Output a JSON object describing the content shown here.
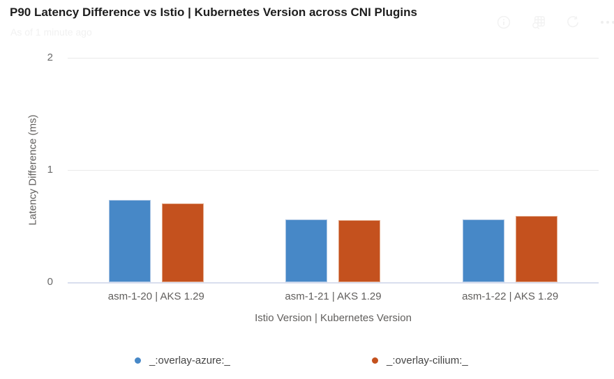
{
  "header": {
    "title": "P90 Latency Difference vs Istio | Kubernetes Version across CNI Plugins",
    "subtitle": "As of 1 minute ago",
    "toolbar_icons": [
      "info-icon",
      "view-data-icon",
      "refresh-icon",
      "more-options-icon"
    ]
  },
  "chart_data": {
    "type": "bar",
    "title": "P90 Latency Difference vs Istio | Kubernetes Version across CNI Plugins",
    "categories": [
      "asm-1-20 | AKS 1.29",
      "asm-1-21 | AKS 1.29",
      "asm-1-22 | AKS 1.29"
    ],
    "series": [
      {
        "name": "_:overlay-azure:_",
        "color": "#4788C7",
        "border": "#A9C4E3",
        "values": [
          0.73,
          0.56,
          0.56
        ]
      },
      {
        "name": "_:overlay-cilium:_",
        "color": "#C4511E",
        "border": "#E2A686",
        "values": [
          0.7,
          0.55,
          0.59
        ]
      }
    ],
    "xlabel": "Istio Version | Kubernetes Version",
    "ylabel": "Latency Difference (ms)",
    "ylim": [
      0,
      2
    ],
    "yticks": [
      0,
      1,
      2
    ],
    "grid": true,
    "legend_position": "bottom"
  },
  "colors": {
    "title_text": "#1d1d1d",
    "axis_text": "#605e5c",
    "gridline": "#e9e9e9",
    "baseline": "#d9deee",
    "faded_ui": "#f2f2f2"
  }
}
